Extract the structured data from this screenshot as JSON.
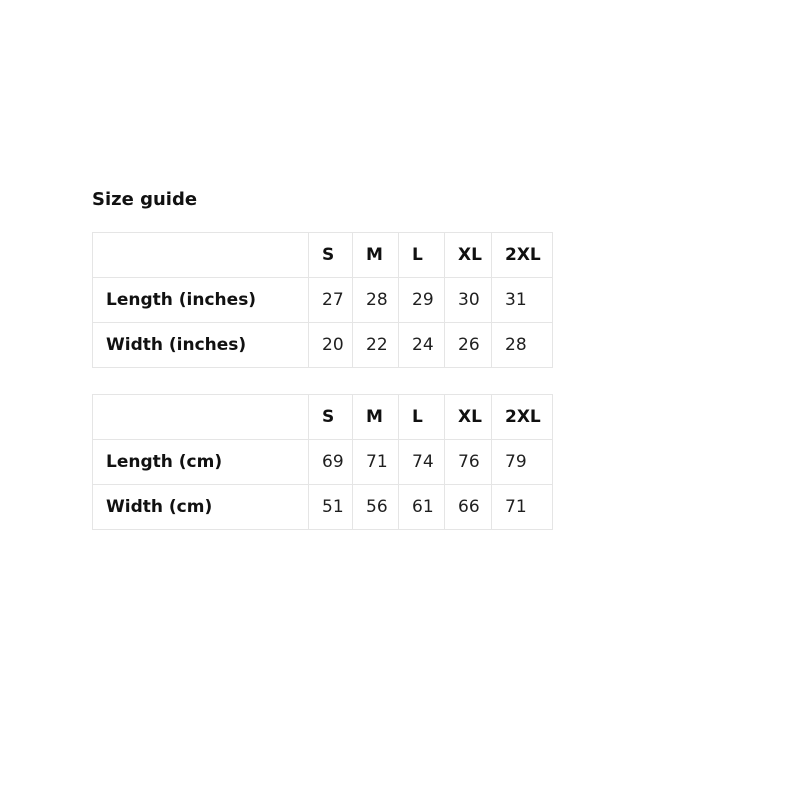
{
  "page": {
    "title": "Size guide"
  },
  "colors": {
    "background": "#ffffff",
    "text": "#111111",
    "number_text": "#1f1f1f",
    "table_border": "#e5e5e5"
  },
  "tables": [
    {
      "unit": "inches",
      "columns": [
        "S",
        "M",
        "L",
        "XL",
        "2XL"
      ],
      "rows": [
        {
          "label": "Length (inches)",
          "values": [
            "27",
            "28",
            "29",
            "30",
            "31"
          ]
        },
        {
          "label": "Width (inches)",
          "values": [
            "20",
            "22",
            "24",
            "26",
            "28"
          ]
        }
      ]
    },
    {
      "unit": "cm",
      "columns": [
        "S",
        "M",
        "L",
        "XL",
        "2XL"
      ],
      "rows": [
        {
          "label": "Length (cm)",
          "values": [
            "69",
            "71",
            "74",
            "76",
            "79"
          ]
        },
        {
          "label": "Width (cm)",
          "values": [
            "51",
            "56",
            "61",
            "66",
            "71"
          ]
        }
      ]
    }
  ]
}
